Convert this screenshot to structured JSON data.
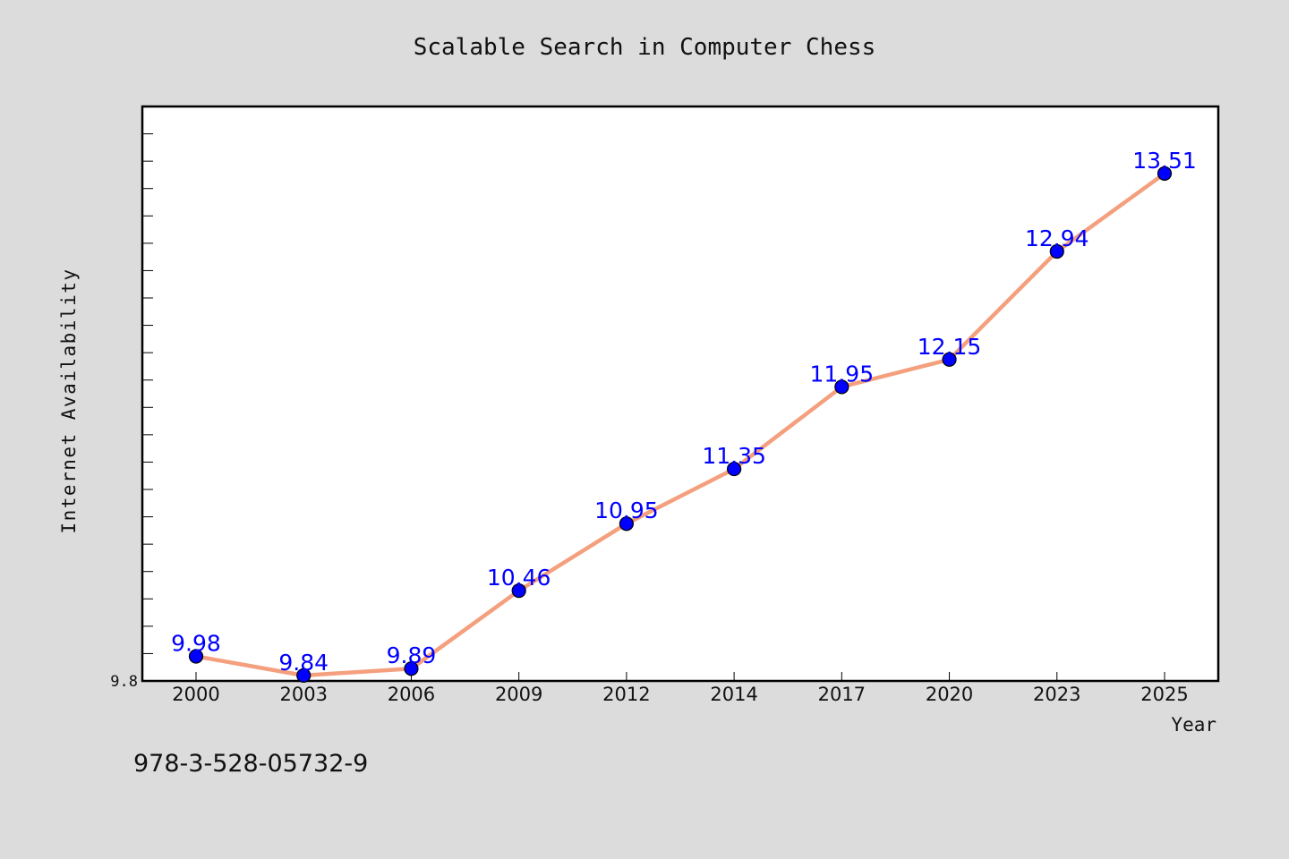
{
  "footer_code": "978-3-528-05732-9",
  "colors": {
    "background": "#dcdcdc",
    "plot_background": "#ffffff",
    "line": "#f4a07e",
    "marker": "#0000ff",
    "label": "#0000ff"
  },
  "chart_data": {
    "type": "line",
    "title": "Scalable Search in Computer Chess",
    "xlabel": "Year",
    "ylabel": "Internet Availability",
    "categories": [
      "2000",
      "2003",
      "2006",
      "2009",
      "2012",
      "2014",
      "2017",
      "2020",
      "2023",
      "2025"
    ],
    "values": [
      9.98,
      9.84,
      9.89,
      10.46,
      10.95,
      11.35,
      11.95,
      12.15,
      12.94,
      13.51
    ],
    "data_labels": [
      "9.98",
      "9.84",
      "9.89",
      "10.46",
      "10.95",
      "11.35",
      "11.95",
      "12.15",
      "12.94",
      "13.51"
    ],
    "ylim": [
      9.8,
      14.0
    ],
    "y_tick_labels": [
      "9.8"
    ],
    "grid": false,
    "markers": true
  }
}
